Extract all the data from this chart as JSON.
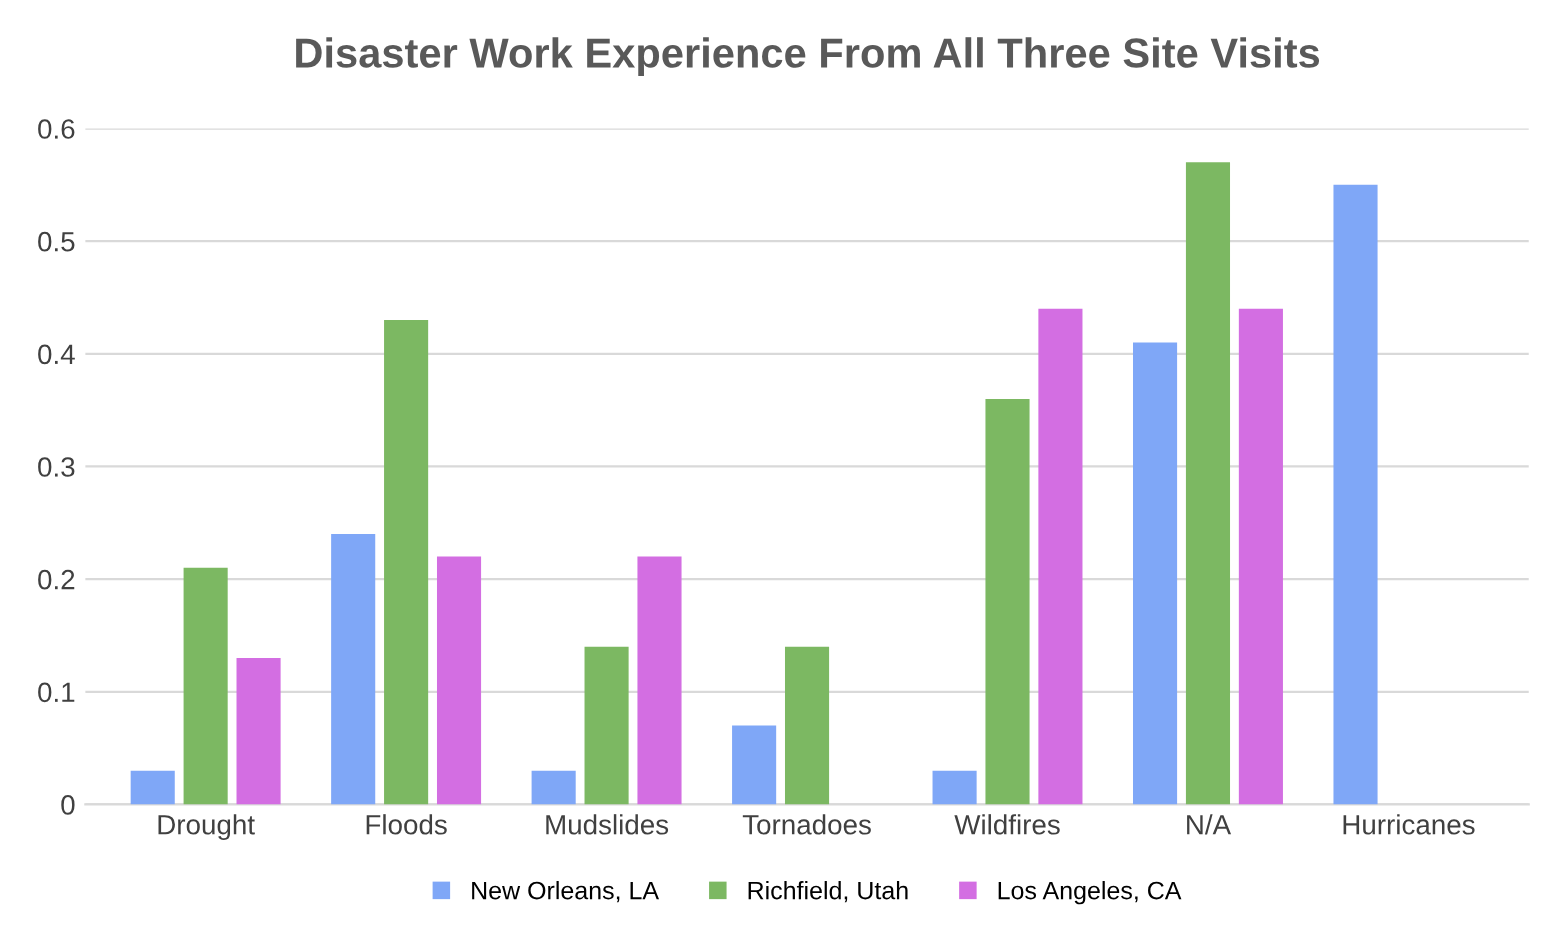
{
  "chart_data": {
    "type": "bar",
    "title": "Disaster Work Experience From All Three Site Visits",
    "categories": [
      "Drought",
      "Floods",
      "Mudslides",
      "Tornadoes",
      "Wildfires",
      "N/A",
      "Hurricanes"
    ],
    "series": [
      {
        "name": "New Orleans, LA",
        "color": "#7fa7f7",
        "values": [
          0.03,
          0.24,
          0.03,
          0.07,
          0.03,
          0.41,
          0.55
        ]
      },
      {
        "name": "Richfield, Utah",
        "color": "#7cb862",
        "values": [
          0.21,
          0.43,
          0.14,
          0.14,
          0.36,
          0.57,
          null
        ]
      },
      {
        "name": "Los Angeles, CA",
        "color": "#d36ee2",
        "values": [
          0.13,
          0.22,
          0.22,
          null,
          0.44,
          0.44,
          null
        ]
      }
    ],
    "ylim": [
      0,
      0.6
    ],
    "yticks": [
      {
        "value": 0,
        "label": "0"
      },
      0.1,
      0.2,
      0.3,
      0.4,
      0.5,
      0.6
    ],
    "grid": "y",
    "legend": "bottom"
  }
}
